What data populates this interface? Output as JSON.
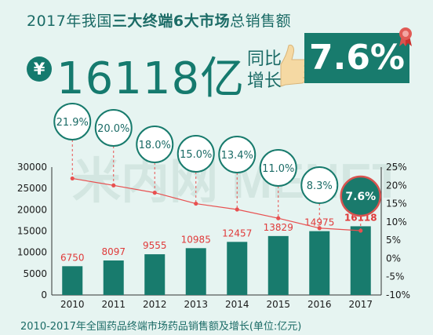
{
  "header": {
    "title_pre": "2017年我国",
    "title_bold": "三大终端6大市场",
    "title_post": "总销售额",
    "currency_symbol": "¥",
    "total": "16118亿",
    "yoy_line1": "同比",
    "yoy_line2": "增长",
    "growth": "7.6%"
  },
  "watermark": "米内网 MENET",
  "caption": "2010-2017年全国药品终端市场药品销售额及增长(单位:亿元)",
  "colors": {
    "bar": "#187b6d",
    "line": "#e85050",
    "accent": "#157a6e",
    "highlight_bg": "#1a7a6c"
  },
  "chart_data": {
    "type": "bar",
    "categories": [
      "2010",
      "2011",
      "2012",
      "2013",
      "2014",
      "2015",
      "2016",
      "2017"
    ],
    "series": [
      {
        "values": [
          6750,
          8097,
          9555,
          10985,
          12457,
          13829,
          14975,
          16118
        ]
      },
      {
        "values": [
          21.9,
          20.0,
          18.0,
          15.0,
          13.4,
          11.0,
          8.3,
          7.6
        ]
      }
    ],
    "bar_labels": [
      "6750",
      "8097",
      "9555",
      "10985",
      "12457",
      "13829",
      "14975",
      "16118"
    ],
    "growth_labels": [
      "21.9%",
      "20.0%",
      "18.0%",
      "15.0%",
      "13.4%",
      "11.0%",
      "8.3%",
      "7.6%"
    ],
    "y_left": {
      "range": [
        0,
        30000
      ],
      "ticks": [
        "0",
        "5000",
        "10000",
        "15000",
        "20000",
        "25000",
        "30000"
      ]
    },
    "y_right": {
      "range": [
        -10,
        25
      ],
      "ticks": [
        "-10%",
        "-5%",
        "0%",
        "5%",
        "10%",
        "15%",
        "20%",
        "25%"
      ]
    },
    "grid": false,
    "highlight_last": true
  }
}
